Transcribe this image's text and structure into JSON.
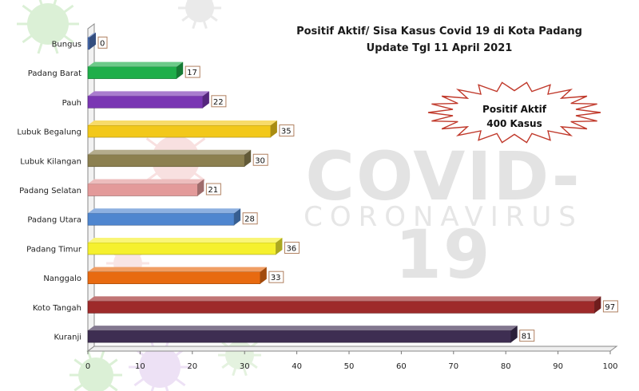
{
  "title_line1": "Positif Aktif/ Sisa Kasus Covid 19 di Kota Padang",
  "title_line2": "Update Tgl 11 April 2021",
  "callout": {
    "line1": "Positif Aktif",
    "line2": "400 Kasus"
  },
  "watermark": {
    "line1": "COVID-19",
    "line2": "CORONAVIRUS"
  },
  "chart_data": {
    "type": "bar",
    "orientation": "horizontal",
    "title": "Positif Aktif/ Sisa Kasus Covid 19 di Kota Padang",
    "subtitle": "Update Tgl 11 April 2021",
    "categories": [
      "Bungus",
      "Padang Barat",
      "Pauh",
      "Lubuk Begalung",
      "Lubuk Kilangan",
      "Padang Selatan",
      "Padang Utara",
      "Padang Timur",
      "Nanggalo",
      "Koto Tangah",
      "Kuranji"
    ],
    "values": [
      0,
      17,
      22,
      35,
      30,
      21,
      28,
      36,
      33,
      97,
      81
    ],
    "colors": [
      "#4a6fb5",
      "#1fae4a",
      "#7a36b3",
      "#f2c81a",
      "#8c8050",
      "#e39a9a",
      "#4f86cf",
      "#f5f02e",
      "#e86a10",
      "#9e2a2a",
      "#3e2e52"
    ],
    "xlim": [
      0,
      100
    ],
    "xticks": [
      0,
      10,
      20,
      30,
      40,
      50,
      60,
      70,
      80,
      90,
      100
    ],
    "data_labels": true,
    "grid": false,
    "legend": "none",
    "xlabel": "",
    "ylabel": ""
  }
}
